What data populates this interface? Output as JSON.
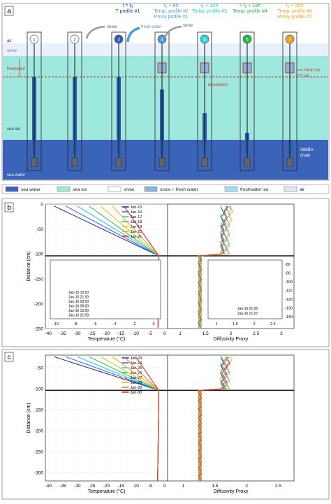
{
  "panels": {
    "a": "a",
    "b": "b",
    "c": "c"
  },
  "top_labels": {
    "t1": "t = t",
    "t1_sub": "0",
    "t1_b": "T profile #1",
    "t2_a": "t",
    "t2_sub": "0",
    "t2_b": " + 6h",
    "t2_c": "Temp. profile #2",
    "t2_d": "Proxy profile #1",
    "t3_a": "t",
    "t3_sub": "0",
    "t3_b": " + 12h",
    "t3_c": "Temp. profile #3",
    "t4_a": "> t",
    "t4_sub": "0",
    "t4_b": " + 18h",
    "t4_c": "Temp. profile #4",
    "t5_a": "t",
    "t5_sub": "0",
    "t5_b": " + 30h",
    "t5_c": "Temp. profile #6",
    "t5_d": "Proxy profile #2"
  },
  "diagram": {
    "layer_air": "air",
    "layer_snow": "snow",
    "layer_freeboard": "freeboard",
    "layer_sea_ice": "sea ice",
    "layer_sea_water": "sea water",
    "snow_arrow_1": "snow",
    "snow_arrow_2": "snow",
    "fresh_water_arrow": "fresh water",
    "dissolution": "dissolution",
    "fresh_ice": "fresh ice",
    "air_mark": "air",
    "simba_1": "SIMBA",
    "simba_2": "chain",
    "circle_numbers": [
      "1",
      "2",
      "3",
      "4",
      "5",
      "6",
      "7"
    ],
    "circle_colors": [
      "#ffffff",
      "#ffffff",
      "#2e5fa8",
      "#4f9ad8",
      "#2fd6e0",
      "#22b84a",
      "#f2a11f"
    ]
  },
  "legend": [
    {
      "label": "sea water",
      "color": "#3b64b8"
    },
    {
      "label": "sea ice",
      "color": "#9fe8dd"
    },
    {
      "label": "snow",
      "color": "#ffffff"
    },
    {
      "label": "snow + fresh water",
      "color": "#8db4dd"
    },
    {
      "label": "freshwater ice",
      "color": "#a9dcef"
    },
    {
      "label": "air",
      "color": "#d9e8f7"
    }
  ],
  "chart_data": [
    {
      "type": "line",
      "panel": "b",
      "xlabel": "Temperature (°C)",
      "ylabel": "Distance (cm)",
      "xlim": [
        -41,
        1
      ],
      "ylim": [
        -250,
        0
      ],
      "x_ticks": [
        "-40",
        "-35",
        "-30",
        "-25",
        "-20",
        "-15",
        "-10",
        "-5",
        "0"
      ],
      "y_ticks": [
        "0",
        "-50",
        "-100",
        "-150",
        "-200",
        "-250"
      ],
      "series_names": [
        "Jan-15",
        "Jan-16",
        "Jan-17",
        "Jan-18",
        "Jan-19",
        "Jan-20",
        "Jan-21"
      ],
      "series_colors": [
        "#1f1fa8",
        "#2f64ff",
        "#1ec8d8",
        "#27c24a",
        "#c8c81c",
        "#ff9c1c",
        "#e41c1c"
      ],
      "inset_temp": {
        "x_ticks": [
          "-10",
          "-8",
          "-6",
          "-4",
          "-2",
          "0"
        ],
        "y_ticks": [
          "-80",
          "-90",
          "-100",
          "-110",
          "-120",
          "-130",
          "-140"
        ],
        "legend": [
          "Jan-15 15:00",
          "Jan-15 21:00",
          "Jan-16 03:00",
          "Jan-16 09:00",
          "Jan-16 15:00",
          "Jan-16 21:00"
        ]
      },
      "proxy": {
        "xlabel": "Diffusivity Proxy",
        "x_ticks": [
          "1",
          "1.5",
          "2",
          "2.5",
          "3"
        ],
        "inset_legend": [
          "Jan-15 21:05",
          "Jan-16 21:07"
        ],
        "inset_x_ticks": [
          "1",
          "1.5",
          "2",
          "2.5"
        ],
        "inset_y_ticks": [
          "-80",
          "-90",
          "-100",
          "-110",
          "-120",
          "-130",
          "-140"
        ]
      }
    },
    {
      "type": "line",
      "panel": "c",
      "xlabel": "Temperature (°C)",
      "ylabel": "Distance (cm)",
      "xlim": [
        -41,
        1
      ],
      "ylim": [
        -320,
        -20
      ],
      "x_ticks": [
        "-40",
        "-35",
        "-30",
        "-25",
        "-20",
        "-15",
        "-10",
        "-5",
        "0"
      ],
      "y_ticks": [
        "-50",
        "-100",
        "-150",
        "-200",
        "-250",
        "-300"
      ],
      "series_names": [
        "Jan-23",
        "Jan-24",
        "Jan-25",
        "Jan-26",
        "Jan-27",
        "Jan-28",
        "Jan-29",
        "Jan-30"
      ],
      "series_colors": [
        "#1f1fa8",
        "#2f64ff",
        "#1ec8d8",
        "#27c24a",
        "#c8c81c",
        "#ff9c1c",
        "#ff6a1c",
        "#e41c1c"
      ],
      "proxy": {
        "xlabel": "Diffusivity Proxy",
        "x_ticks": [
          "1",
          "1.5",
          "2",
          "2.5"
        ]
      }
    }
  ]
}
